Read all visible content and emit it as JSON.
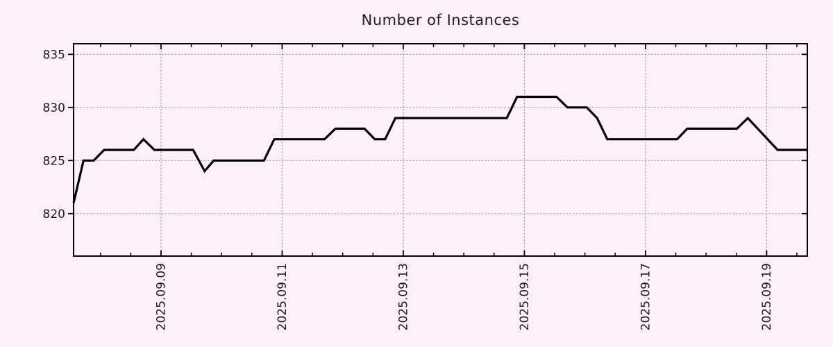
{
  "page": {
    "background_color": "#fdf0fb"
  },
  "chart_data": {
    "type": "line",
    "title": "Number of Instances",
    "x_axis": {
      "unit": "date (September 2025, decimal day-of-month)",
      "tick_labels": [
        "2025.09.09",
        "2025.09.11",
        "2025.09.13",
        "2025.09.15",
        "2025.09.17",
        "2025.09.19"
      ],
      "tick_days": [
        9,
        11,
        13,
        15,
        17,
        19
      ],
      "minor_tick_step_days": 0.5,
      "range_days": [
        7.556,
        19.672
      ]
    },
    "y_axis": {
      "tick_labels": [
        "820",
        "825",
        "830",
        "835"
      ],
      "ticks": [
        820,
        825,
        830,
        835
      ],
      "range": [
        816,
        836
      ]
    },
    "grid": {
      "style": "dotted",
      "color": "#a0a0a0",
      "on": true
    },
    "legend": {
      "visible": false
    },
    "series": [
      {
        "name": "instances",
        "color": "#000000",
        "points_day_value": [
          [
            7.556,
            821
          ],
          [
            7.72,
            825
          ],
          [
            7.89,
            825
          ],
          [
            8.06,
            826
          ],
          [
            8.55,
            826
          ],
          [
            8.71,
            827
          ],
          [
            8.89,
            826
          ],
          [
            9.53,
            826
          ],
          [
            9.72,
            824
          ],
          [
            9.87,
            825
          ],
          [
            10.7,
            825
          ],
          [
            10.87,
            827
          ],
          [
            11.7,
            827
          ],
          [
            11.88,
            828
          ],
          [
            12.36,
            828
          ],
          [
            12.53,
            827
          ],
          [
            12.7,
            827
          ],
          [
            12.87,
            829
          ],
          [
            14.71,
            829
          ],
          [
            14.88,
            831
          ],
          [
            15.53,
            831
          ],
          [
            15.71,
            830
          ],
          [
            16.03,
            830
          ],
          [
            16.2,
            829
          ],
          [
            16.37,
            827
          ],
          [
            17.52,
            827
          ],
          [
            17.69,
            828
          ],
          [
            18.51,
            828
          ],
          [
            18.69,
            829
          ],
          [
            19.18,
            826
          ],
          [
            19.672,
            826
          ]
        ]
      }
    ],
    "colors": {
      "line": "#000000",
      "border": "#000000",
      "text": "#1b1b1b",
      "background": "#fdf0fb",
      "grid": "#a0a0a0"
    }
  }
}
